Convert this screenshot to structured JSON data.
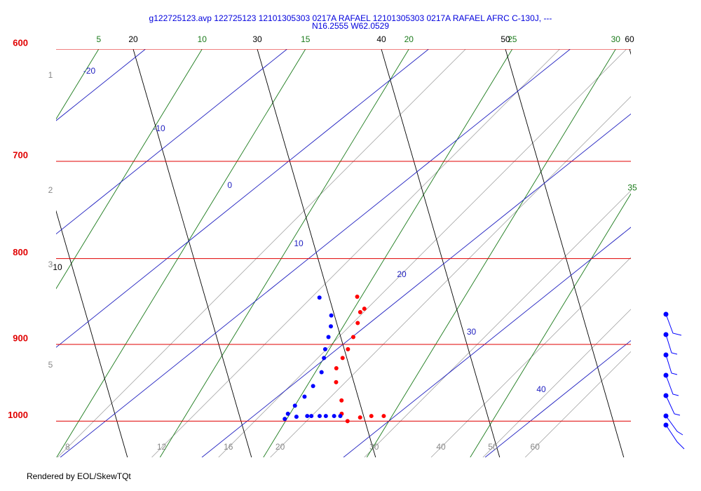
{
  "chart_data": {
    "type": "skewt",
    "title": "g122725123.avp 122725123 12101305303 0217A RAFAEL  12101305303 0217A RAFAEL AFRC C-130J, ---",
    "subtitle": "N16.2555 W62.0529",
    "log_y": true,
    "ylim": [
      1051,
      600
    ],
    "yticks": [
      600,
      700,
      800,
      900,
      1000
    ],
    "height_km_labels": [
      1,
      2,
      3,
      5
    ],
    "isotherms": [
      5,
      10,
      15,
      20,
      25,
      30,
      35
    ],
    "dry_adiabats": [
      10,
      20,
      30,
      40,
      50,
      60
    ],
    "moist_adiabats": [
      -20,
      -10,
      0,
      10,
      20,
      30,
      40
    ],
    "mixing_ratios": [
      8,
      12,
      16,
      20,
      30,
      40,
      50,
      60
    ],
    "series": [
      {
        "color": "#ff0000",
        "pressure": [
          993,
          993,
          995,
          1000,
          990,
          972,
          948,
          930,
          917,
          906,
          891,
          874,
          861,
          857,
          843
        ],
        "values": [
          29.6,
          29.0,
          28.5,
          28.0,
          27.5,
          27.1,
          26.3,
          25.9,
          25.9,
          25.9,
          25.8,
          25.6,
          25.4,
          25.5,
          24.8
        ]
      },
      {
        "color": "#0000ff",
        "pressure": [
          993,
          993,
          993,
          993,
          993,
          993,
          994,
          997,
          990,
          979,
          967,
          953,
          935,
          917,
          906,
          891,
          878,
          865,
          844
        ],
        "values": [
          27.5,
          27.2,
          26.8,
          26.5,
          26.1,
          25.9,
          25.4,
          24.9,
          24.9,
          25.0,
          25.2,
          25.3,
          25.3,
          25.0,
          24.8,
          24.6,
          24.4,
          24.1,
          23.0
        ]
      }
    ]
  },
  "footer": "Rendered by EOL/SkewTQt"
}
